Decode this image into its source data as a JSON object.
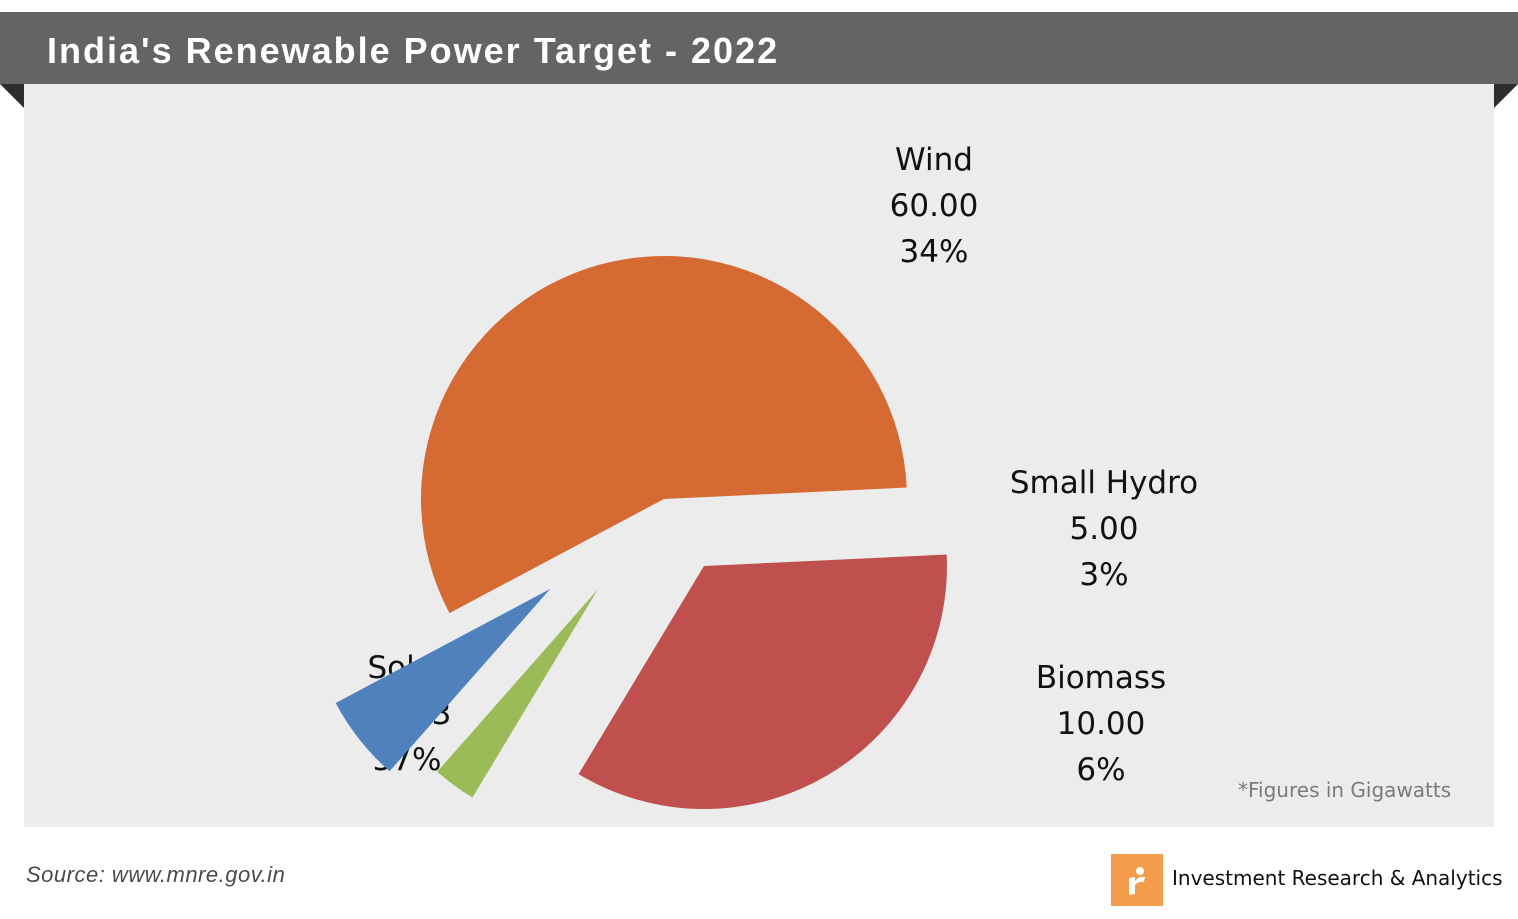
{
  "header": {
    "title": "India's Renewable Power Target - 2022"
  },
  "footer": {
    "source": "Source: www.mnre.gov.in",
    "brand": "Investment  Research & Analytics",
    "note": "*Figures in Gigawatts"
  },
  "colors": {
    "title_bar": "#636466",
    "panel": "#ececec",
    "brand_accent": "#f39c4b"
  },
  "chart_data": {
    "type": "pie",
    "title": "India's Renewable Power Target - 2022",
    "unit": "Gigawatts",
    "slices": [
      {
        "label": "Solar",
        "value": 99.53,
        "value_text": "99.53",
        "percent": "57%",
        "color": "#d56a32",
        "exploded": false
      },
      {
        "label": "Wind",
        "value": 60.0,
        "value_text": "60.00",
        "percent": "34%",
        "color": "#c0504d",
        "exploded": true
      },
      {
        "label": "Small Hydro",
        "value": 5.0,
        "value_text": "5.00",
        "percent": "3%",
        "color": "#9bbb59",
        "exploded": true
      },
      {
        "label": "Biomass",
        "value": 10.0,
        "value_text": "10.00",
        "percent": "6%",
        "color": "#4f81bd",
        "exploded": true
      }
    ]
  }
}
